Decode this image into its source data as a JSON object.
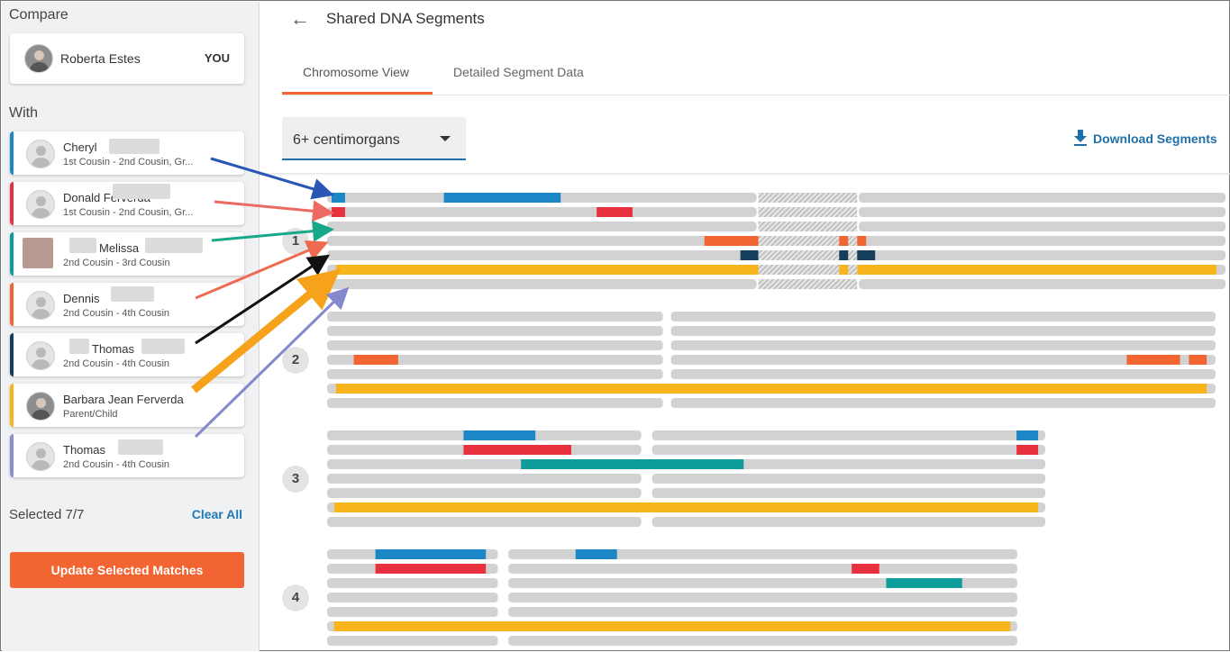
{
  "sidebar": {
    "compare_label": "Compare",
    "you_card": {
      "name": "Roberta Estes",
      "badge": "YOU"
    },
    "with_label": "With",
    "matches": [
      {
        "name": "Cheryl",
        "relationship": "1st Cousin - 2nd Cousin, Gr...",
        "color": "#1b87c6",
        "avatar": "placeholder"
      },
      {
        "name": "Donald Ferverda",
        "relationship": "1st Cousin - 2nd Cousin, Gr...",
        "color": "#e8313f",
        "avatar": "placeholder"
      },
      {
        "name": "Melissa",
        "relationship": "2nd Cousin - 3rd Cousin",
        "color": "#0e9d9a",
        "avatar": "photo"
      },
      {
        "name": "Dennis",
        "relationship": "2nd Cousin - 4th Cousin",
        "color": "#f26432",
        "avatar": "placeholder"
      },
      {
        "name": "Thomas",
        "relationship": "2nd Cousin - 4th Cousin",
        "color": "#143e5c",
        "avatar": "placeholder"
      },
      {
        "name": "Barbara Jean Ferverda",
        "relationship": "Parent/Child",
        "color": "#f7b51b",
        "avatar": "photo"
      },
      {
        "name": "Thomas",
        "relationship": "2nd Cousin - 4th Cousin",
        "color": "#8c8fcd",
        "avatar": "placeholder"
      }
    ],
    "selected_text": "Selected 7/7",
    "clear_all_label": "Clear All",
    "update_button_label": "Update Selected Matches"
  },
  "header": {
    "title": "Shared DNA Segments",
    "tabs": [
      {
        "label": "Chromosome View",
        "active": true
      },
      {
        "label": "Detailed Segment Data",
        "active": false
      }
    ]
  },
  "filter": {
    "selected": "6+ centimorgans"
  },
  "download_label": "Download Segments",
  "colors": {
    "bar_gray": "#d2d2d2",
    "accent_orange": "#f26432",
    "link_blue": "#1f6fa8"
  },
  "chromosomes": [
    {
      "label": "1",
      "segments": [
        [
          [
            0.005,
            0.02
          ],
          [
            0.13,
            0.26
          ]
        ],
        [
          [
            0.005,
            0.02
          ],
          [
            0.3,
            0.34
          ]
        ],
        [],
        [
          [
            0.42,
            0.48
          ],
          [
            0.57,
            0.58
          ],
          [
            0.59,
            0.6
          ]
        ],
        [
          [
            0.46,
            0.48
          ],
          [
            0.57,
            0.58
          ],
          [
            0.59,
            0.61
          ]
        ],
        [
          [
            0.01,
            0.48
          ],
          [
            0.57,
            0.58
          ],
          [
            0.59,
            0.99
          ]
        ],
        []
      ]
    },
    {
      "label": "2",
      "segments": [
        [],
        [],
        [],
        [
          [
            0.03,
            0.08
          ],
          [
            0.9,
            0.96
          ],
          [
            0.97,
            0.99
          ]
        ],
        [],
        [
          [
            0.01,
            0.99
          ]
        ],
        []
      ]
    },
    {
      "label": "3",
      "segments": [
        [
          [
            0.19,
            0.29
          ],
          [
            0.96,
            0.99
          ]
        ],
        [
          [
            0.19,
            0.34
          ],
          [
            0.96,
            0.99
          ]
        ],
        [
          [
            0.27,
            0.58
          ]
        ],
        [],
        [],
        [
          [
            0.01,
            0.99
          ]
        ],
        []
      ]
    },
    {
      "label": "4",
      "segments": [
        [
          [
            0.07,
            0.23
          ],
          [
            0.36,
            0.42
          ]
        ],
        [
          [
            0.07,
            0.23
          ],
          [
            0.76,
            0.8
          ]
        ],
        [
          [
            0.81,
            0.92
          ]
        ],
        [],
        [],
        [
          [
            0.01,
            0.99
          ]
        ],
        []
      ]
    }
  ]
}
